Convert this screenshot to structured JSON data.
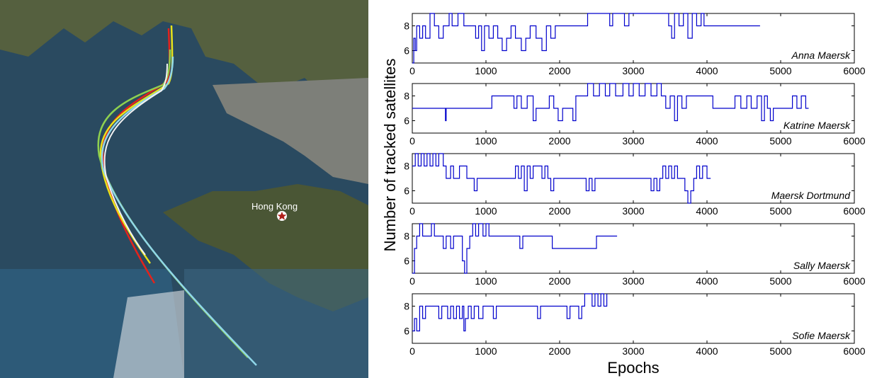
{
  "map": {
    "place_label": "Hong Kong",
    "place_icon": "star-marker-icon",
    "colors": {
      "water_dark": "#1f3f57",
      "water_light": "#3b6f8e",
      "land": "#4f5a3a",
      "city": "#8a8a86",
      "track_red": "#e3231c",
      "track_yellow": "#e8e21a",
      "track_green": "#8fd14f",
      "track_cyan": "#8fd6e8",
      "track_white": "#f2f2f2"
    }
  },
  "chart_data": {
    "type": "line",
    "ylabel": "Number of tracked satellites",
    "xlabel": "Epochs",
    "xlim": [
      0,
      6000
    ],
    "ylim": [
      5,
      9
    ],
    "x_ticks": [
      "0",
      "1000",
      "2000",
      "3000",
      "4000",
      "5000",
      "6000"
    ],
    "y_ticks": [
      "6",
      "8"
    ],
    "line_color": "#0000cc",
    "series": [
      {
        "name": "Anna Maersk",
        "end_epoch": 4720,
        "points": [
          [
            0,
            5
          ],
          [
            20,
            7
          ],
          [
            40,
            6
          ],
          [
            60,
            8
          ],
          [
            100,
            7
          ],
          [
            140,
            8
          ],
          [
            180,
            7
          ],
          [
            240,
            9
          ],
          [
            300,
            8
          ],
          [
            360,
            7
          ],
          [
            420,
            8
          ],
          [
            500,
            9
          ],
          [
            540,
            8
          ],
          [
            620,
            9
          ],
          [
            700,
            8
          ],
          [
            760,
            8
          ],
          [
            860,
            7
          ],
          [
            900,
            8
          ],
          [
            940,
            6
          ],
          [
            980,
            8
          ],
          [
            1040,
            7
          ],
          [
            1100,
            8
          ],
          [
            1160,
            7
          ],
          [
            1220,
            6
          ],
          [
            1280,
            7
          ],
          [
            1340,
            8
          ],
          [
            1400,
            7
          ],
          [
            1480,
            6
          ],
          [
            1540,
            7
          ],
          [
            1600,
            8
          ],
          [
            1680,
            7
          ],
          [
            1760,
            6
          ],
          [
            1820,
            8
          ],
          [
            1880,
            7
          ],
          [
            1940,
            8
          ],
          [
            2000,
            8
          ],
          [
            2100,
            8
          ],
          [
            2200,
            8
          ],
          [
            2300,
            8
          ],
          [
            2380,
            9
          ],
          [
            2500,
            9
          ],
          [
            2600,
            9
          ],
          [
            2680,
            8
          ],
          [
            2720,
            9
          ],
          [
            2800,
            9
          ],
          [
            2880,
            8
          ],
          [
            2940,
            9
          ],
          [
            3000,
            9
          ],
          [
            3100,
            9
          ],
          [
            3200,
            9
          ],
          [
            3300,
            9
          ],
          [
            3400,
            9
          ],
          [
            3480,
            8
          ],
          [
            3520,
            7
          ],
          [
            3560,
            9
          ],
          [
            3620,
            8
          ],
          [
            3680,
            9
          ],
          [
            3740,
            7
          ],
          [
            3800,
            9
          ],
          [
            3860,
            8
          ],
          [
            3920,
            9
          ],
          [
            3960,
            8
          ],
          [
            4000,
            8
          ],
          [
            4200,
            8
          ],
          [
            4400,
            8
          ],
          [
            4720,
            8
          ]
        ]
      },
      {
        "name": "Katrine Maersk",
        "end_epoch": 5380,
        "points": [
          [
            0,
            7
          ],
          [
            200,
            7
          ],
          [
            400,
            7
          ],
          [
            450,
            6
          ],
          [
            460,
            7
          ],
          [
            600,
            7
          ],
          [
            800,
            7
          ],
          [
            1000,
            7
          ],
          [
            1080,
            8
          ],
          [
            1200,
            8
          ],
          [
            1300,
            8
          ],
          [
            1380,
            7
          ],
          [
            1420,
            8
          ],
          [
            1480,
            7
          ],
          [
            1560,
            8
          ],
          [
            1600,
            8
          ],
          [
            1640,
            6
          ],
          [
            1680,
            7
          ],
          [
            1780,
            7
          ],
          [
            1860,
            8
          ],
          [
            1920,
            7
          ],
          [
            1980,
            6
          ],
          [
            2040,
            7
          ],
          [
            2120,
            7
          ],
          [
            2180,
            6
          ],
          [
            2220,
            8
          ],
          [
            2300,
            8
          ],
          [
            2380,
            9
          ],
          [
            2460,
            8
          ],
          [
            2540,
            9
          ],
          [
            2620,
            8
          ],
          [
            2680,
            9
          ],
          [
            2760,
            8
          ],
          [
            2860,
            9
          ],
          [
            2940,
            8
          ],
          [
            3000,
            9
          ],
          [
            3080,
            8
          ],
          [
            3160,
            9
          ],
          [
            3240,
            8
          ],
          [
            3320,
            9
          ],
          [
            3380,
            8
          ],
          [
            3440,
            7
          ],
          [
            3500,
            8
          ],
          [
            3560,
            6
          ],
          [
            3600,
            8
          ],
          [
            3660,
            7
          ],
          [
            3720,
            8
          ],
          [
            3800,
            8
          ],
          [
            3900,
            8
          ],
          [
            4000,
            8
          ],
          [
            4080,
            7
          ],
          [
            4200,
            7
          ],
          [
            4300,
            7
          ],
          [
            4380,
            8
          ],
          [
            4460,
            7
          ],
          [
            4540,
            8
          ],
          [
            4600,
            7
          ],
          [
            4680,
            8
          ],
          [
            4740,
            6
          ],
          [
            4780,
            8
          ],
          [
            4820,
            7
          ],
          [
            4860,
            6
          ],
          [
            4900,
            7
          ],
          [
            5000,
            7
          ],
          [
            5080,
            7
          ],
          [
            5160,
            8
          ],
          [
            5220,
            7
          ],
          [
            5280,
            8
          ],
          [
            5340,
            7
          ],
          [
            5380,
            7
          ]
        ]
      },
      {
        "name": "Maersk Dortmund",
        "end_epoch": 4050,
        "points": [
          [
            0,
            8
          ],
          [
            40,
            9
          ],
          [
            80,
            8
          ],
          [
            120,
            9
          ],
          [
            160,
            8
          ],
          [
            200,
            9
          ],
          [
            240,
            8
          ],
          [
            280,
            9
          ],
          [
            320,
            8
          ],
          [
            360,
            9
          ],
          [
            400,
            9
          ],
          [
            420,
            8
          ],
          [
            460,
            7
          ],
          [
            520,
            8
          ],
          [
            560,
            7
          ],
          [
            600,
            7
          ],
          [
            640,
            8
          ],
          [
            700,
            8
          ],
          [
            740,
            7
          ],
          [
            800,
            7
          ],
          [
            840,
            6
          ],
          [
            880,
            7
          ],
          [
            1000,
            7
          ],
          [
            1100,
            7
          ],
          [
            1200,
            7
          ],
          [
            1360,
            7
          ],
          [
            1400,
            8
          ],
          [
            1440,
            7
          ],
          [
            1480,
            8
          ],
          [
            1520,
            6
          ],
          [
            1560,
            8
          ],
          [
            1600,
            7
          ],
          [
            1640,
            8
          ],
          [
            1700,
            8
          ],
          [
            1760,
            7
          ],
          [
            1800,
            8
          ],
          [
            1840,
            7
          ],
          [
            1880,
            6
          ],
          [
            1920,
            7
          ],
          [
            2000,
            7
          ],
          [
            2100,
            7
          ],
          [
            2200,
            7
          ],
          [
            2300,
            7
          ],
          [
            2360,
            6
          ],
          [
            2400,
            7
          ],
          [
            2440,
            6
          ],
          [
            2480,
            7
          ],
          [
            2600,
            7
          ],
          [
            2800,
            7
          ],
          [
            3000,
            7
          ],
          [
            3200,
            7
          ],
          [
            3240,
            6
          ],
          [
            3280,
            7
          ],
          [
            3320,
            6
          ],
          [
            3360,
            7
          ],
          [
            3400,
            8
          ],
          [
            3440,
            7
          ],
          [
            3480,
            8
          ],
          [
            3520,
            7
          ],
          [
            3560,
            8
          ],
          [
            3600,
            7
          ],
          [
            3640,
            7
          ],
          [
            3700,
            6
          ],
          [
            3740,
            5
          ],
          [
            3780,
            6
          ],
          [
            3820,
            7
          ],
          [
            3860,
            8
          ],
          [
            3900,
            7
          ],
          [
            3940,
            8
          ],
          [
            4000,
            7
          ],
          [
            4050,
            7
          ]
        ]
      },
      {
        "name": "Sally Maersk",
        "end_epoch": 2780,
        "points": [
          [
            0,
            5
          ],
          [
            30,
            7
          ],
          [
            60,
            8
          ],
          [
            100,
            9
          ],
          [
            140,
            8
          ],
          [
            200,
            8
          ],
          [
            260,
            9
          ],
          [
            300,
            8
          ],
          [
            360,
            8
          ],
          [
            420,
            7
          ],
          [
            460,
            8
          ],
          [
            520,
            7
          ],
          [
            560,
            8
          ],
          [
            620,
            8
          ],
          [
            680,
            6
          ],
          [
            710,
            5
          ],
          [
            740,
            7
          ],
          [
            780,
            8
          ],
          [
            820,
            9
          ],
          [
            860,
            8
          ],
          [
            900,
            9
          ],
          [
            960,
            8
          ],
          [
            1000,
            9
          ],
          [
            1040,
            8
          ],
          [
            1100,
            8
          ],
          [
            1200,
            8
          ],
          [
            1400,
            8
          ],
          [
            1460,
            7
          ],
          [
            1500,
            8
          ],
          [
            1600,
            8
          ],
          [
            1700,
            8
          ],
          [
            1900,
            7
          ],
          [
            2000,
            7
          ],
          [
            2200,
            7
          ],
          [
            2400,
            7
          ],
          [
            2500,
            8
          ],
          [
            2600,
            8
          ],
          [
            2780,
            8
          ]
        ]
      },
      {
        "name": "Sofie Maersk",
        "end_epoch": 2640,
        "points": [
          [
            0,
            6
          ],
          [
            30,
            7
          ],
          [
            60,
            6
          ],
          [
            100,
            8
          ],
          [
            140,
            7
          ],
          [
            180,
            8
          ],
          [
            240,
            8
          ],
          [
            320,
            8
          ],
          [
            360,
            7
          ],
          [
            400,
            8
          ],
          [
            480,
            7
          ],
          [
            520,
            8
          ],
          [
            560,
            7
          ],
          [
            600,
            8
          ],
          [
            640,
            7
          ],
          [
            680,
            8
          ],
          [
            700,
            6
          ],
          [
            720,
            7
          ],
          [
            760,
            8
          ],
          [
            800,
            7
          ],
          [
            840,
            8
          ],
          [
            900,
            7
          ],
          [
            960,
            8
          ],
          [
            1040,
            8
          ],
          [
            1100,
            7
          ],
          [
            1140,
            8
          ],
          [
            1200,
            8
          ],
          [
            1400,
            8
          ],
          [
            1600,
            8
          ],
          [
            1700,
            7
          ],
          [
            1740,
            8
          ],
          [
            1800,
            8
          ],
          [
            2000,
            8
          ],
          [
            2100,
            7
          ],
          [
            2140,
            8
          ],
          [
            2200,
            8
          ],
          [
            2260,
            7
          ],
          [
            2300,
            8
          ],
          [
            2340,
            9
          ],
          [
            2400,
            9
          ],
          [
            2440,
            8
          ],
          [
            2480,
            9
          ],
          [
            2520,
            8
          ],
          [
            2560,
            9
          ],
          [
            2600,
            8
          ],
          [
            2640,
            9
          ]
        ]
      }
    ]
  }
}
